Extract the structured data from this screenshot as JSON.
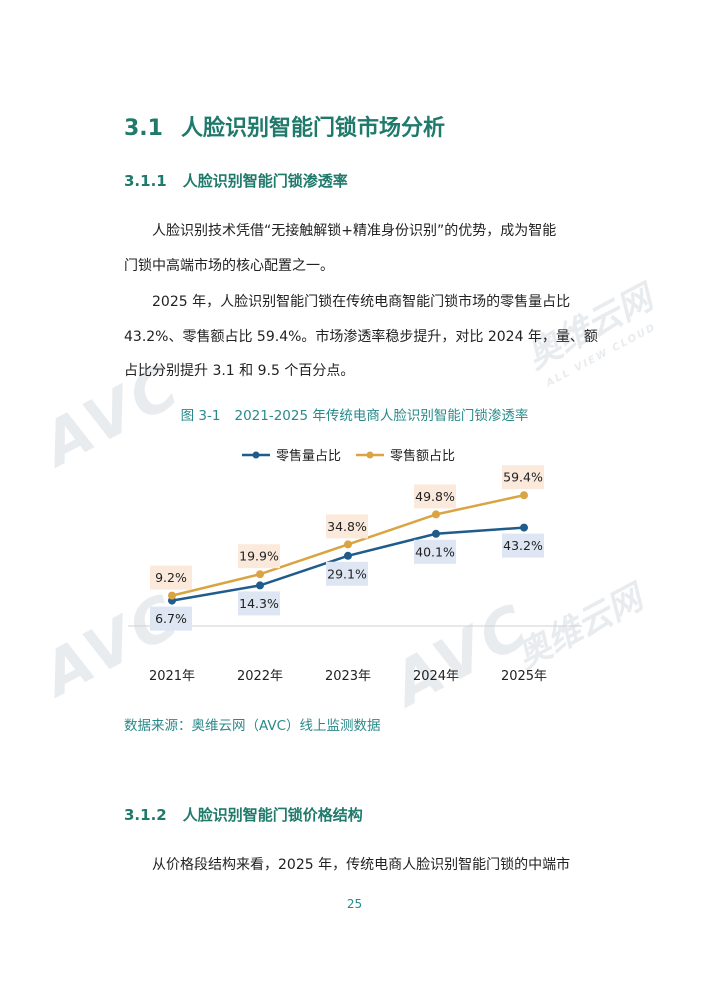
{
  "section": {
    "number": "3.1",
    "title": "人脸识别智能门锁市场分析"
  },
  "subsection1": {
    "number": "3.1.1",
    "title": "人脸识别智能门锁渗透率"
  },
  "paragraph1": {
    "line1": "人脸识别技术凭借“无接触解锁+精准身份识别”的优势，成为智能",
    "line2": "门锁中高端市场的核心配置之一。"
  },
  "paragraph2": {
    "line1": "2025 年，人脸识别智能门锁在传统电商智能门锁市场的零售量占比",
    "line2": "43.2%、零售额占比 59.4%。市场渗透率稳步提升，对比 2024 年，量、额",
    "line3": "占比分别提升 3.1 和 9.5 个百分点。"
  },
  "figure": {
    "number": "图 3-1",
    "title": "2021-2025 年传统电商人脸识别智能门锁渗透率"
  },
  "chart_data": {
    "type": "line",
    "x": [
      "2021年",
      "2022年",
      "2023年",
      "2024年",
      "2025年"
    ],
    "series": [
      {
        "name": "零售量占比",
        "values": [
          6.7,
          14.3,
          29.1,
          40.1,
          43.2
        ],
        "labels": [
          "6.7%",
          "14.3%",
          "29.1%",
          "40.1%",
          "43.2%"
        ],
        "color": "#1f5c8c",
        "label_bg": "#dde6f2"
      },
      {
        "name": "零售额占比",
        "values": [
          9.2,
          19.9,
          34.8,
          49.8,
          59.4
        ],
        "labels": [
          "9.2%",
          "19.9%",
          "34.8%",
          "49.8%",
          "59.4%"
        ],
        "color": "#d9a441",
        "label_bg": "#fbeadc"
      }
    ],
    "legend_position": "top-center",
    "grid": false
  },
  "source": "数据来源：奥维云网（AVC）线上监测数据",
  "subsection2": {
    "number": "3.1.2",
    "title": "人脸识别智能门锁价格结构"
  },
  "paragraph3": {
    "line1": "从价格段结构来看，2025 年，传统电商人脸识别智能门锁的中端市"
  },
  "page_number": "25",
  "watermark": {
    "brand": "AVC",
    "cn": "奥维云网",
    "sub": "ALL VIEW CLOUD"
  }
}
